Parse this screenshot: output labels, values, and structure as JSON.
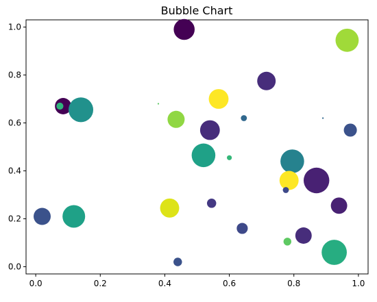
{
  "chart_data": {
    "type": "scatter",
    "title": "Bubble Chart",
    "xlabel": "",
    "ylabel": "",
    "xlim": [
      -0.03,
      1.03
    ],
    "ylim": [
      -0.03,
      1.03
    ],
    "x_ticks": [
      0.0,
      0.2,
      0.4,
      0.6,
      0.8,
      1.0
    ],
    "y_ticks": [
      0.0,
      0.2,
      0.4,
      0.6,
      0.8,
      1.0
    ],
    "x_tick_labels": [
      "0.0",
      "0.2",
      "0.4",
      "0.6",
      "0.8",
      "1.0"
    ],
    "y_tick_labels": [
      "0.0",
      "0.2",
      "0.4",
      "0.6",
      "0.8",
      "1.0"
    ],
    "grid": false,
    "legend": "none",
    "points": [
      {
        "x": 0.46,
        "y": 0.99,
        "size": 180,
        "color": "#440154"
      },
      {
        "x": 0.965,
        "y": 0.945,
        "size": 220,
        "color": "#a0da39"
      },
      {
        "x": 0.715,
        "y": 0.775,
        "size": 140,
        "color": "#472d7b"
      },
      {
        "x": 0.567,
        "y": 0.7,
        "size": 160,
        "color": "#fde725"
      },
      {
        "x": 0.085,
        "y": 0.67,
        "size": 110,
        "color": "#440154"
      },
      {
        "x": 0.075,
        "y": 0.67,
        "size": 20,
        "color": "#2fb47c"
      },
      {
        "x": 0.14,
        "y": 0.655,
        "size": 250,
        "color": "#21918c"
      },
      {
        "x": 0.38,
        "y": 0.68,
        "size": 1,
        "color": "#5ec962"
      },
      {
        "x": 0.435,
        "y": 0.615,
        "size": 120,
        "color": "#90d743"
      },
      {
        "x": 0.645,
        "y": 0.62,
        "size": 15,
        "color": "#31688e"
      },
      {
        "x": 0.89,
        "y": 0.62,
        "size": 1,
        "color": "#31688e"
      },
      {
        "x": 0.54,
        "y": 0.57,
        "size": 160,
        "color": "#472d7b"
      },
      {
        "x": 0.975,
        "y": 0.57,
        "size": 70,
        "color": "#3b528b"
      },
      {
        "x": 0.52,
        "y": 0.465,
        "size": 230,
        "color": "#1fa187"
      },
      {
        "x": 0.6,
        "y": 0.455,
        "size": 10,
        "color": "#35b779"
      },
      {
        "x": 0.795,
        "y": 0.44,
        "size": 230,
        "color": "#26828e"
      },
      {
        "x": 0.87,
        "y": 0.36,
        "size": 270,
        "color": "#482173"
      },
      {
        "x": 0.785,
        "y": 0.36,
        "size": 150,
        "color": "#fde725"
      },
      {
        "x": 0.775,
        "y": 0.32,
        "size": 15,
        "color": "#3e4989"
      },
      {
        "x": 0.02,
        "y": 0.21,
        "size": 120,
        "color": "#3b528b"
      },
      {
        "x": 0.118,
        "y": 0.21,
        "size": 210,
        "color": "#1fa187"
      },
      {
        "x": 0.415,
        "y": 0.245,
        "size": 150,
        "color": "#dde318"
      },
      {
        "x": 0.545,
        "y": 0.265,
        "size": 35,
        "color": "#443983"
      },
      {
        "x": 0.94,
        "y": 0.255,
        "size": 110,
        "color": "#482173"
      },
      {
        "x": 0.64,
        "y": 0.16,
        "size": 50,
        "color": "#3e4989"
      },
      {
        "x": 0.83,
        "y": 0.13,
        "size": 110,
        "color": "#472d7b"
      },
      {
        "x": 0.78,
        "y": 0.105,
        "size": 25,
        "color": "#5ec962"
      },
      {
        "x": 0.925,
        "y": 0.06,
        "size": 260,
        "color": "#27ad81"
      },
      {
        "x": 0.44,
        "y": 0.02,
        "size": 30,
        "color": "#3b528b"
      }
    ]
  }
}
